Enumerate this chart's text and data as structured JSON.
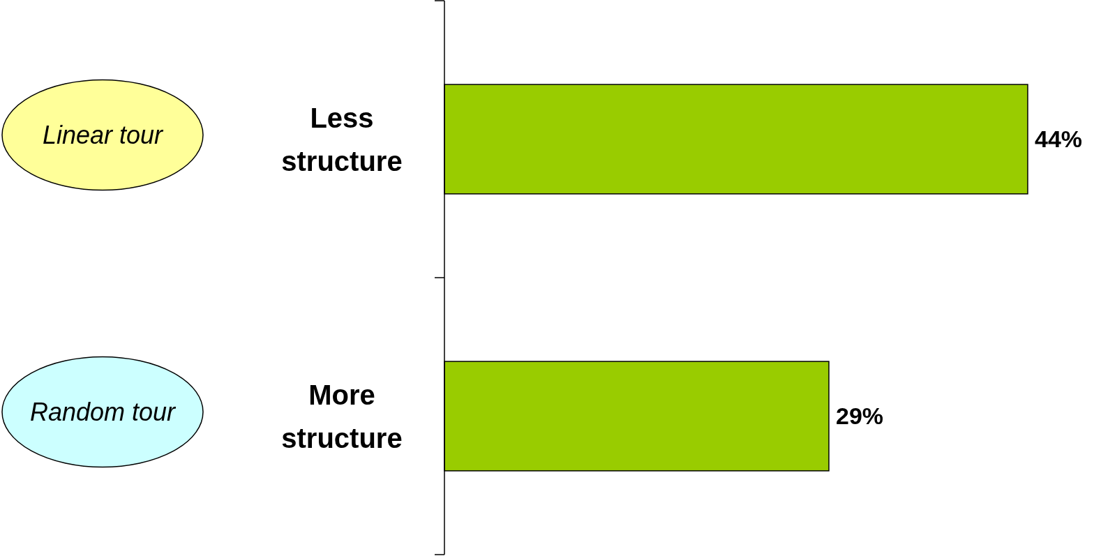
{
  "chart_data": {
    "type": "bar",
    "orientation": "horizontal",
    "categories": [
      "Less structure",
      "More structure"
    ],
    "values": [
      44,
      29
    ],
    "value_labels": [
      "44%",
      "29%"
    ],
    "color": "#99cc00",
    "tick_labels": "y",
    "annotations": [
      "Linear tour",
      "Random tour"
    ]
  }
}
